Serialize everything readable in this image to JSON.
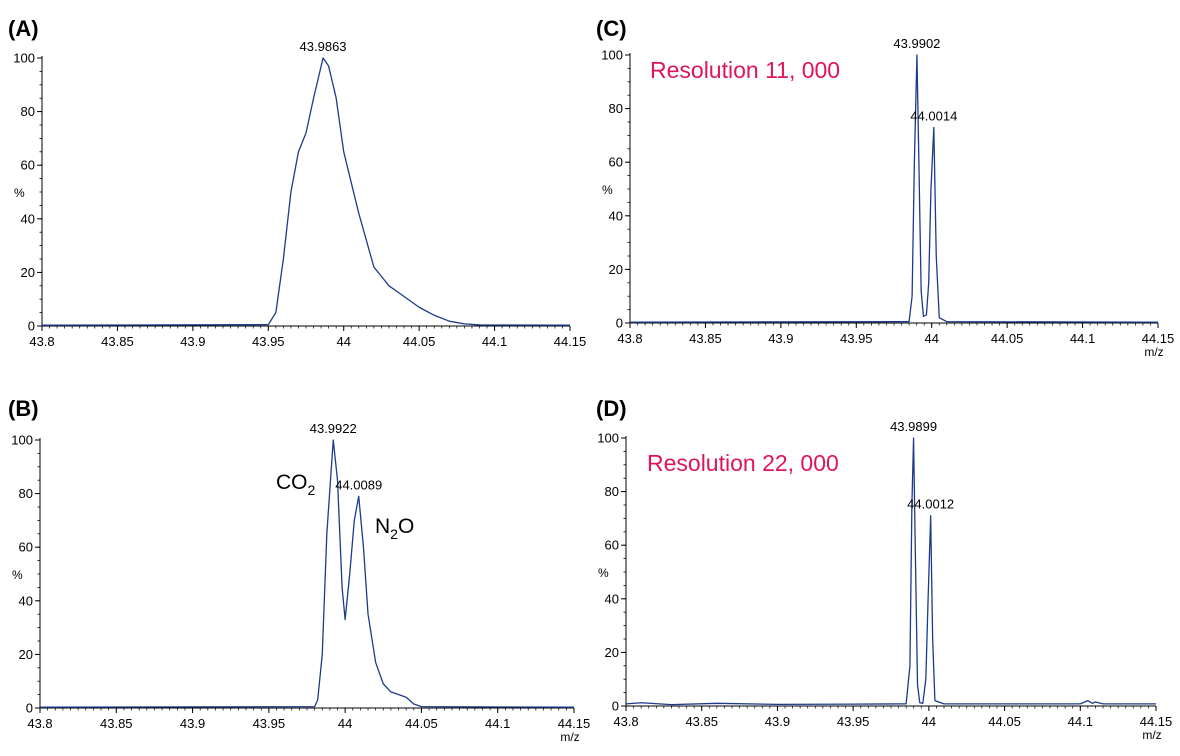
{
  "chart_data": [
    {
      "panel": "(A)",
      "type": "line",
      "xlabel": "",
      "ylabel": "%",
      "xlim": [
        43.8,
        44.15
      ],
      "ylim": [
        0,
        100
      ],
      "x_ticks": [
        "43.8",
        "43.85",
        "43.9",
        "43.95",
        "44",
        "44.05",
        "44.1",
        "44.15"
      ],
      "y_ticks": [
        "0",
        "20",
        "40",
        "60",
        "80",
        "100"
      ],
      "series": [
        {
          "color": "#1c3b8a",
          "x": [
            43.8,
            43.95,
            43.955,
            43.96,
            43.965,
            43.97,
            43.975,
            43.98,
            43.9863,
            43.99,
            43.995,
            44.0,
            44.01,
            44.02,
            44.03,
            44.04,
            44.05,
            44.06,
            44.07,
            44.08,
            44.09,
            44.15
          ],
          "y": [
            0.3,
            0.5,
            5,
            25,
            50,
            65,
            72,
            85,
            100,
            97,
            85,
            65,
            42,
            22,
            15,
            11,
            7,
            4,
            1.8,
            0.8,
            0.4,
            0.3
          ]
        }
      ],
      "peaks": [
        {
          "x": 43.9863,
          "y": 100,
          "label": "43.9863"
        }
      ],
      "annotations": []
    },
    {
      "panel": "(B)",
      "type": "line",
      "xlabel": "m/z",
      "ylabel": "%",
      "xlim": [
        43.8,
        44.15
      ],
      "ylim": [
        0,
        100
      ],
      "x_ticks": [
        "43.8",
        "43.85",
        "43.9",
        "43.95",
        "44",
        "44.05",
        "44.1",
        "44.15"
      ],
      "y_ticks": [
        "0",
        "20",
        "40",
        "60",
        "80",
        "100"
      ],
      "series": [
        {
          "color": "#1c3b8a",
          "x": [
            43.8,
            43.98,
            43.982,
            43.985,
            43.988,
            43.9922,
            43.995,
            43.998,
            44.0,
            44.003,
            44.006,
            44.0089,
            44.012,
            44.015,
            44.02,
            44.025,
            44.03,
            44.04,
            44.045,
            44.05,
            44.15
          ],
          "y": [
            0.3,
            0.5,
            3,
            20,
            65,
            100,
            85,
            45,
            33,
            50,
            70,
            79,
            60,
            35,
            17,
            9,
            6,
            4,
            1.5,
            0.5,
            0.3
          ]
        }
      ],
      "peaks": [
        {
          "x": 43.9922,
          "y": 100,
          "label": "43.9922"
        },
        {
          "x": 44.0089,
          "y": 79,
          "label": "44.0089"
        }
      ],
      "annotations": [],
      "species": [
        {
          "text": "CO",
          "sub": "2",
          "after": ""
        },
        {
          "text": "N",
          "sub": "2",
          "after": "O"
        }
      ]
    },
    {
      "panel": "(C)",
      "type": "line",
      "xlabel": "m/z",
      "ylabel": "%",
      "xlim": [
        43.8,
        44.15
      ],
      "ylim": [
        0,
        100
      ],
      "x_ticks": [
        "43.8",
        "43.85",
        "43.9",
        "43.95",
        "44",
        "44.05",
        "44.1",
        "44.15"
      ],
      "y_ticks": [
        "0",
        "20",
        "40",
        "60",
        "80",
        "100"
      ],
      "series": [
        {
          "color": "#1c3b8a",
          "x": [
            43.8,
            43.985,
            43.987,
            43.9885,
            43.9902,
            43.9915,
            43.993,
            43.9945,
            43.9965,
            43.998,
            43.9995,
            44.0014,
            44.003,
            44.005,
            44.01,
            44.15
          ],
          "y": [
            0.3,
            0.5,
            10,
            60,
            100,
            60,
            12,
            2.5,
            3,
            15,
            50,
            73,
            25,
            2,
            0.5,
            0.3
          ]
        }
      ],
      "peaks": [
        {
          "x": 43.9902,
          "y": 100,
          "label": "43.9902"
        },
        {
          "x": 44.0014,
          "y": 73,
          "label": "44.0014"
        }
      ],
      "annotations": [
        {
          "text": "Resolution   11, 000",
          "color": "#e0145a"
        }
      ]
    },
    {
      "panel": "(D)",
      "type": "line",
      "xlabel": "m/z",
      "ylabel": "%",
      "xlim": [
        43.8,
        44.15
      ],
      "ylim": [
        0,
        100
      ],
      "x_ticks": [
        "43.8",
        "43.85",
        "43.9",
        "43.95",
        "44",
        "44.05",
        "44.1",
        "44.15"
      ],
      "y_ticks": [
        "0",
        "20",
        "40",
        "60",
        "80",
        "100"
      ],
      "series": [
        {
          "color": "#1c3b8a",
          "x": [
            43.8,
            43.81,
            43.83,
            43.86,
            43.9,
            43.95,
            43.985,
            43.9875,
            43.9888,
            43.9899,
            43.991,
            43.9925,
            43.994,
            43.996,
            43.998,
            43.9995,
            44.0012,
            44.0025,
            44.004,
            44.01,
            44.1,
            44.105,
            44.108,
            44.11,
            44.115,
            44.15
          ],
          "y": [
            0.8,
            1.2,
            0.5,
            1.0,
            0.6,
            0.7,
            0.8,
            15,
            75,
            100,
            60,
            8,
            1.2,
            1.0,
            10,
            40,
            71,
            25,
            2,
            0.8,
            0.8,
            2,
            1,
            1.5,
            0.8,
            0.8
          ]
        }
      ],
      "peaks": [
        {
          "x": 43.9899,
          "y": 100,
          "label": "43.9899"
        },
        {
          "x": 44.0012,
          "y": 71,
          "label": "44.0012"
        }
      ],
      "annotations": [
        {
          "text": "Resolution 22, 000",
          "color": "#e0145a"
        }
      ]
    }
  ]
}
